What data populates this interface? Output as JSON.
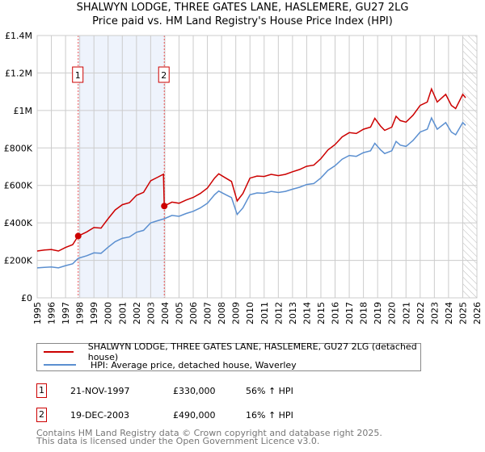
{
  "title_line1": "SHALWYN LODGE, THREE GATES LANE, HASLEMERE, GU27 2LG",
  "title_line2": "Price paid vs. HM Land Registry's House Price Index (HPI)",
  "colors": {
    "property": "#cc0000",
    "hpi": "#5b8fd0",
    "shade": "#eef3fc",
    "grid": "#cccccc"
  },
  "chart_data": {
    "type": "line",
    "xlim": [
      1995,
      2026
    ],
    "ylim": [
      0,
      1400000
    ],
    "x_ticks": [
      "1995",
      "1996",
      "1997",
      "1998",
      "1999",
      "2000",
      "2001",
      "2002",
      "2003",
      "2004",
      "2005",
      "2006",
      "2007",
      "2008",
      "2009",
      "2010",
      "2011",
      "2012",
      "2013",
      "2014",
      "2015",
      "2016",
      "2017",
      "2018",
      "2019",
      "2020",
      "2021",
      "2022",
      "2023",
      "2024",
      "2025",
      "2026"
    ],
    "y_ticks": [
      {
        "value": 0,
        "label": "£0"
      },
      {
        "value": 200000,
        "label": "£200K"
      },
      {
        "value": 400000,
        "label": "£400K"
      },
      {
        "value": 600000,
        "label": "£600K"
      },
      {
        "value": 800000,
        "label": "£800K"
      },
      {
        "value": 1000000,
        "label": "£1M"
      },
      {
        "value": 1200000,
        "label": "£1.2M"
      },
      {
        "value": 1400000,
        "label": "£1.4M"
      }
    ],
    "shaded_range": [
      1997.89,
      2003.96
    ],
    "forecast_hatch_from": 2025.0,
    "sales": [
      {
        "label": "1",
        "x": 1997.89,
        "y": 330000
      },
      {
        "label": "2",
        "x": 2003.96,
        "y": 490000
      }
    ],
    "series": [
      {
        "name": "SHALWYN LODGE, THREE GATES LANE, HASLEMERE, GU27 2LG (detached house)",
        "color": "#cc0000",
        "x": [
          1995,
          1995.5,
          1996,
          1996.5,
          1997,
          1997.5,
          1997.89,
          1998.5,
          1999,
          1999.5,
          2000,
          2000.5,
          2001,
          2001.5,
          2002,
          2002.5,
          2003,
          2003.5,
          2003.9,
          2003.96,
          2004.5,
          2005,
          2005.5,
          2006,
          2006.5,
          2007,
          2007.5,
          2007.8,
          2008.3,
          2008.7,
          2009.1,
          2009.5,
          2010,
          2010.5,
          2011,
          2011.5,
          2012,
          2012.5,
          2013,
          2013.5,
          2014,
          2014.5,
          2015,
          2015.5,
          2016,
          2016.5,
          2017,
          2017.5,
          2018,
          2018.5,
          2018.8,
          2019.2,
          2019.5,
          2020,
          2020.3,
          2020.6,
          2021,
          2021.5,
          2022,
          2022.5,
          2022.8,
          2023.2,
          2023.8,
          2024.2,
          2024.5,
          2025,
          2025.2
        ],
        "y": [
          250,
          255,
          258,
          250,
          269,
          284,
          330,
          352,
          375,
          372,
          422,
          469,
          497,
          508,
          547,
          563,
          625,
          644,
          660,
          490,
          511,
          505,
          522,
          536,
          557,
          586,
          639,
          662,
          639,
          621,
          517,
          557,
          639,
          650,
          648,
          659,
          652,
          659,
          673,
          685,
          702,
          708,
          743,
          789,
          818,
          859,
          882,
          877,
          900,
          911,
          958,
          917,
          894,
          911,
          969,
          946,
          938,
          975,
          1027,
          1045,
          1115,
          1045,
          1086,
          1027,
          1010,
          1086,
          1068
        ]
      },
      {
        "name": "HPI: Average price, detached house, Waverley",
        "color": "#5b8fd0",
        "x": [
          1995,
          1995.5,
          1996,
          1996.5,
          1997,
          1997.5,
          1997.89,
          1998.5,
          1999,
          1999.5,
          2000,
          2000.5,
          2001,
          2001.5,
          2002,
          2002.5,
          2003,
          2003.5,
          2003.96,
          2004.5,
          2005,
          2005.5,
          2006,
          2006.5,
          2007,
          2007.5,
          2007.8,
          2008.3,
          2008.7,
          2009.1,
          2009.5,
          2010,
          2010.5,
          2011,
          2011.5,
          2012,
          2012.5,
          2013,
          2013.5,
          2014,
          2014.5,
          2015,
          2015.5,
          2016,
          2016.5,
          2017,
          2017.5,
          2018,
          2018.5,
          2018.8,
          2019.2,
          2019.5,
          2020,
          2020.3,
          2020.6,
          2021,
          2021.5,
          2022,
          2022.5,
          2022.8,
          2023.2,
          2023.8,
          2024.2,
          2024.5,
          2025,
          2025.2
        ],
        "y": [
          160,
          163,
          165,
          160,
          172,
          182,
          211,
          225,
          240,
          238,
          270,
          300,
          318,
          325,
          350,
          360,
          400,
          412,
          422,
          440,
          435,
          450,
          462,
          480,
          505,
          550,
          570,
          550,
          535,
          445,
          480,
          550,
          560,
          558,
          568,
          562,
          568,
          580,
          590,
          605,
          610,
          640,
          680,
          705,
          740,
          760,
          755,
          775,
          785,
          825,
          790,
          770,
          785,
          835,
          815,
          808,
          840,
          885,
          900,
          960,
          900,
          935,
          885,
          870,
          935,
          920
        ]
      }
    ],
    "y_unit_multiplier": 1000
  },
  "legend": {
    "property": "SHALWYN LODGE, THREE GATES LANE, HASLEMERE, GU27 2LG (detached house)",
    "hpi": "HPI: Average price, detached house, Waverley"
  },
  "transactions": [
    {
      "num": "1",
      "date": "21-NOV-1997",
      "price": "£330,000",
      "hpi": "56% ↑ HPI"
    },
    {
      "num": "2",
      "date": "19-DEC-2003",
      "price": "£490,000",
      "hpi": "16% ↑ HPI"
    }
  ],
  "footer_line1": "Contains HM Land Registry data © Crown copyright and database right 2025.",
  "footer_line2": "This data is licensed under the Open Government Licence v3.0."
}
